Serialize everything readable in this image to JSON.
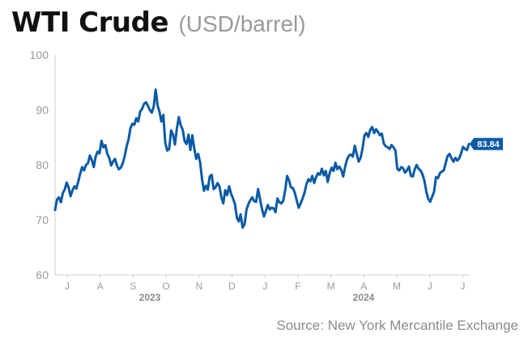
{
  "header": {
    "title": "WTI Crude",
    "subtitle": "(USD/barrel)"
  },
  "source": "Source: New York Mercantile Exchange",
  "colors": {
    "line": "#0b5aa6",
    "label_bg": "#0b5aa6",
    "axis_text": "#9a9a9a",
    "axis_line": "#cccccc"
  },
  "chart_data": {
    "type": "line",
    "title": "WTI Crude",
    "ylabel": "(USD/barrel)",
    "ylim": [
      60,
      100
    ],
    "yticks": [
      "100",
      "90",
      "80",
      "70",
      "60"
    ],
    "ytick_values": [
      100,
      90,
      80,
      70,
      60
    ],
    "xticks": [
      "J",
      "A",
      "S",
      "O",
      "N",
      "D",
      "J",
      "F",
      "M",
      "A",
      "M",
      "J",
      "J"
    ],
    "year_labels": [
      "2023",
      "2024"
    ],
    "grid": false,
    "last_value_label": "83.84",
    "series": [
      {
        "values": [
          71.8,
          73.7,
          74.1,
          73.2,
          74.9,
          75.5,
          76.8,
          75.9,
          74.3,
          75.4,
          76.1,
          75.7,
          77.0,
          78.4,
          79.6,
          79.0,
          80.0,
          80.3,
          81.7,
          80.9,
          79.6,
          81.5,
          82.4,
          82.1,
          84.4,
          83.2,
          83.6,
          82.0,
          81.3,
          79.9,
          80.6,
          81.1,
          79.9,
          79.2,
          79.5,
          80.3,
          81.6,
          83.4,
          84.6,
          86.7,
          87.5,
          87.3,
          88.5,
          87.9,
          89.7,
          90.2,
          91.1,
          91.4,
          90.8,
          90.0,
          89.5,
          90.6,
          93.7,
          90.8,
          89.7,
          87.9,
          89.1,
          84.0,
          82.6,
          82.9,
          86.3,
          85.5,
          83.7,
          86.6,
          88.7,
          87.2,
          86.4,
          84.3,
          83.8,
          85.5,
          82.7,
          85.4,
          83.0,
          81.1,
          82.0,
          80.5,
          77.4,
          75.3,
          76.2,
          75.5,
          77.9,
          78.2,
          75.6,
          75.9,
          76.7,
          76.1,
          74.1,
          73.0,
          75.4,
          74.5,
          76.1,
          74.8,
          73.9,
          72.9,
          70.4,
          69.7,
          71.0,
          68.6,
          69.2,
          71.9,
          72.9,
          73.6,
          74.1,
          73.4,
          73.3,
          75.6,
          73.8,
          72.0,
          70.6,
          71.6,
          72.7,
          71.9,
          72.2,
          72.1,
          71.4,
          73.9,
          73.2,
          73.0,
          73.5,
          75.4,
          78.0,
          77.2,
          75.9,
          75.8,
          74.9,
          73.5,
          72.2,
          73.0,
          73.9,
          74.9,
          76.5,
          77.4,
          77.0,
          78.0,
          76.7,
          77.8,
          78.5,
          78.2,
          79.3,
          78.1,
          78.9,
          76.9,
          78.5,
          79.5,
          78.9,
          80.4,
          79.2,
          79.7,
          79.1,
          77.9,
          79.7,
          81.0,
          81.7,
          81.9,
          81.5,
          83.5,
          82.0,
          80.6,
          81.3,
          83.0,
          85.4,
          85.8,
          85.1,
          86.4,
          86.9,
          85.8,
          86.5,
          86.0,
          85.4,
          85.7,
          83.9,
          83.4,
          83.2,
          82.9,
          83.6,
          83.2,
          82.6,
          79.3,
          79.0,
          79.6,
          79.4,
          78.6,
          79.0,
          79.7,
          78.0,
          77.9,
          79.2,
          80.0,
          79.3,
          79.0,
          78.3,
          77.1,
          75.1,
          73.8,
          73.3,
          74.2,
          75.1,
          77.8,
          77.6,
          78.5,
          78.8,
          79.0,
          80.3,
          81.6,
          82.0,
          81.2,
          80.6,
          81.3,
          80.8,
          81.2,
          82.1,
          83.3,
          82.9,
          82.7,
          83.8
        ]
      }
    ]
  }
}
